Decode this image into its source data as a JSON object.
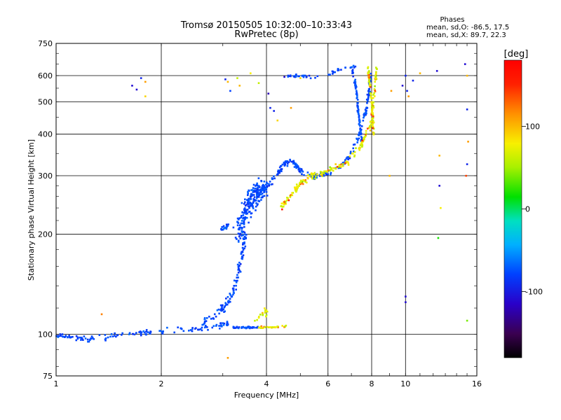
{
  "chart_data": {
    "type": "scatter",
    "title": "Tromsø 20150505 10:32:00–10:33:43",
    "subtitle": "RwPretec (8p)",
    "xlabel": "Frequency [MHz]",
    "ylabel": "Stationary phase Virtual Height [km]",
    "x_scale": "log",
    "y_scale": "log",
    "xlim": [
      1,
      16
    ],
    "ylim": [
      75,
      750
    ],
    "x_ticks": [
      1,
      2,
      4,
      6,
      8,
      10,
      16
    ],
    "x_tick_labels": [
      "1",
      "2",
      "4",
      "6",
      "8",
      "10",
      "16"
    ],
    "y_ticks": [
      75,
      100,
      200,
      300,
      400,
      500,
      600,
      750
    ],
    "y_tick_labels": [
      "75",
      "100",
      "200",
      "300",
      "400",
      "500",
      "600",
      "750"
    ],
    "grid": true,
    "phases_box": {
      "heading": "Phases",
      "line1": "mean, sd,O:  -86.5, 17.5",
      "line2": "mean, sd,X:  89.7, 22.3"
    },
    "colorbar": {
      "label": "[deg]",
      "range": [
        -180,
        180
      ],
      "ticks": [
        100,
        0,
        -100
      ],
      "tick_labels": [
        "100",
        "0",
        "-100"
      ],
      "colormap": "rainbow"
    },
    "traces": [
      {
        "name": "ground-echo-O",
        "kind": "o",
        "points": [
          [
            1.0,
            99
          ],
          [
            1.1,
            98
          ],
          [
            1.25,
            97
          ],
          [
            1.4,
            98
          ],
          [
            1.6,
            100
          ],
          [
            1.8,
            101
          ],
          [
            2.0,
            102
          ],
          [
            2.3,
            103
          ],
          [
            2.6,
            104
          ],
          [
            2.9,
            106
          ],
          [
            3.1,
            108
          ]
        ],
        "spread": 0.03,
        "count": 140
      },
      {
        "name": "e-layer-rise",
        "kind": "o",
        "points": [
          [
            2.6,
            108
          ],
          [
            2.9,
            115
          ],
          [
            3.1,
            125
          ],
          [
            3.25,
            140
          ],
          [
            3.35,
            160
          ],
          [
            3.42,
            180
          ],
          [
            3.47,
            200
          ]
        ],
        "spread": 0.05,
        "count": 110
      },
      {
        "name": "f1-cluster",
        "kind": "o",
        "points": [
          [
            3.3,
            200
          ],
          [
            3.4,
            215
          ],
          [
            3.5,
            235
          ],
          [
            3.6,
            255
          ],
          [
            3.7,
            260
          ],
          [
            3.8,
            268
          ],
          [
            3.95,
            275
          ]
        ],
        "spread": 0.12,
        "count": 220
      },
      {
        "name": "f1-left-bump",
        "kind": "o",
        "points": [
          [
            2.95,
            205
          ],
          [
            3.05,
            208
          ],
          [
            3.1,
            212
          ]
        ],
        "spread": 0.03,
        "count": 18
      },
      {
        "name": "f-trace-O-lower",
        "kind": "o",
        "points": [
          [
            3.9,
            270
          ],
          [
            4.1,
            285
          ],
          [
            4.3,
            305
          ],
          [
            4.5,
            325
          ],
          [
            4.7,
            335
          ],
          [
            4.85,
            325
          ],
          [
            5.0,
            310
          ],
          [
            5.3,
            300
          ],
          [
            5.6,
            298
          ],
          [
            6.0,
            305
          ],
          [
            6.5,
            320
          ],
          [
            7.0,
            350
          ],
          [
            7.4,
            400
          ],
          [
            7.7,
            470
          ],
          [
            7.85,
            540
          ],
          [
            7.95,
            620
          ]
        ],
        "spread": 0.03,
        "count": 230
      },
      {
        "name": "f-trace-O-upper",
        "kind": "o",
        "points": [
          [
            4.6,
            600
          ],
          [
            5.0,
            598
          ],
          [
            5.5,
            592
          ],
          [
            6.0,
            605
          ],
          [
            6.4,
            625
          ],
          [
            6.8,
            635
          ],
          [
            7.2,
            640
          ]
        ],
        "spread": 0.015,
        "count": 45
      },
      {
        "name": "cusp-O-band",
        "kind": "o",
        "points": [
          [
            7.0,
            640
          ],
          [
            7.2,
            560
          ],
          [
            7.3,
            480
          ],
          [
            7.4,
            420
          ],
          [
            7.5,
            380
          ]
        ],
        "spread": 0.02,
        "count": 80
      },
      {
        "name": "x-trace-lower",
        "kind": "x",
        "points": [
          [
            4.4,
            240
          ],
          [
            4.6,
            255
          ],
          [
            4.8,
            270
          ],
          [
            5.0,
            285
          ],
          [
            5.4,
            300
          ],
          [
            5.8,
            305
          ],
          [
            6.2,
            315
          ],
          [
            6.8,
            330
          ],
          [
            7.4,
            365
          ],
          [
            7.9,
            420
          ],
          [
            8.1,
            500
          ],
          [
            8.2,
            580
          ],
          [
            8.25,
            640
          ]
        ],
        "spread": 0.03,
        "count": 200
      },
      {
        "name": "x-trace-bright",
        "kind": "x",
        "points": [
          [
            7.8,
            640
          ],
          [
            7.9,
            560
          ],
          [
            8.0,
            500
          ],
          [
            8.05,
            450
          ],
          [
            8.1,
            400
          ]
        ],
        "spread": 0.02,
        "count": 70
      },
      {
        "name": "mid-band-105",
        "kind": "o",
        "points": [
          [
            3.2,
            105
          ],
          [
            3.5,
            105
          ],
          [
            3.8,
            105
          ]
        ],
        "spread": 0.01,
        "count": 40
      },
      {
        "name": "mid-band-105-x",
        "kind": "x",
        "points": [
          [
            3.8,
            105
          ],
          [
            4.2,
            105
          ],
          [
            4.6,
            106
          ]
        ],
        "spread": 0.01,
        "count": 30
      },
      {
        "name": "x-low-echo",
        "kind": "x",
        "points": [
          [
            3.7,
            110
          ],
          [
            3.9,
            115
          ],
          [
            4.0,
            120
          ],
          [
            4.0,
            112
          ]
        ],
        "spread": 0.03,
        "count": 18
      }
    ],
    "sparse_points": [
      [
        1.65,
        560,
        -110
      ],
      [
        1.7,
        545,
        -110
      ],
      [
        1.75,
        590,
        -100
      ],
      [
        1.8,
        520,
        90
      ],
      [
        1.8,
        575,
        110
      ],
      [
        3.05,
        585,
        -100
      ],
      [
        3.1,
        575,
        100
      ],
      [
        3.15,
        540,
        -90
      ],
      [
        3.3,
        590,
        60
      ],
      [
        3.35,
        560,
        100
      ],
      [
        3.6,
        610,
        80
      ],
      [
        3.8,
        570,
        60
      ],
      [
        4.05,
        530,
        -120
      ],
      [
        4.1,
        480,
        -100
      ],
      [
        4.2,
        470,
        -100
      ],
      [
        4.3,
        440,
        90
      ],
      [
        4.5,
        595,
        -110
      ],
      [
        4.7,
        480,
        110
      ],
      [
        5.0,
        590,
        90
      ],
      [
        5.3,
        600,
        -100
      ],
      [
        9.0,
        300,
        100
      ],
      [
        9.1,
        540,
        110
      ],
      [
        9.8,
        560,
        -110
      ],
      [
        10.0,
        600,
        -100
      ],
      [
        10.1,
        540,
        -100
      ],
      [
        10.2,
        520,
        110
      ],
      [
        10.5,
        580,
        -100
      ],
      [
        11.0,
        610,
        100
      ],
      [
        10.0,
        125,
        -110
      ],
      [
        10.0,
        130,
        -110
      ],
      [
        12.3,
        620,
        -110
      ],
      [
        12.5,
        345,
        100
      ],
      [
        12.5,
        280,
        -110
      ],
      [
        12.6,
        240,
        80
      ],
      [
        12.4,
        195,
        20
      ],
      [
        14.8,
        650,
        -110
      ],
      [
        15.0,
        600,
        100
      ],
      [
        15.0,
        475,
        -100
      ],
      [
        15.1,
        380,
        110
      ],
      [
        15.0,
        325,
        -100
      ],
      [
        14.9,
        300,
        140
      ],
      [
        15.0,
        110,
        40
      ],
      [
        3.1,
        85,
        110
      ],
      [
        1.35,
        115,
        120
      ]
    ]
  }
}
